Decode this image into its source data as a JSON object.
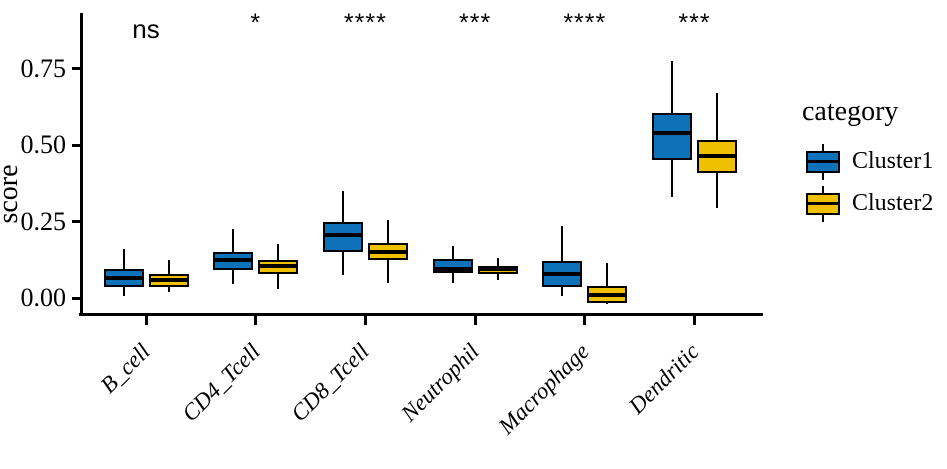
{
  "figure": {
    "ylabel": "score",
    "legend_title": "category"
  },
  "chart_data": {
    "type": "boxplot",
    "title": "",
    "xlabel": "",
    "ylabel": "score",
    "categories": [
      "B_cell",
      "CD4_Tcell",
      "CD8_Tcell",
      "Neutrophil",
      "Macrophage",
      "Dendritic"
    ],
    "significance_labels": [
      "ns",
      "*",
      "****",
      "***",
      "****",
      "***"
    ],
    "yticks": [
      "0.00",
      "0.25",
      "0.50",
      "0.75"
    ],
    "ytick_values": [
      0.0,
      0.25,
      0.5,
      0.75
    ],
    "ylim": [
      -0.05,
      0.95
    ],
    "grid": "off",
    "legend_position": "right",
    "legend": {
      "title": "category",
      "entries": [
        {
          "name": "Cluster1",
          "color": "#0E72B8"
        },
        {
          "name": "Cluster2",
          "color": "#EFC000"
        }
      ]
    },
    "series": [
      {
        "name": "Cluster1",
        "color": "#0E72B8",
        "boxes": [
          {
            "category": "B_cell",
            "min": 0.005,
            "q1": 0.035,
            "median": 0.065,
            "q3": 0.095,
            "max": 0.16
          },
          {
            "category": "CD4_Tcell",
            "min": 0.045,
            "q1": 0.09,
            "median": 0.125,
            "q3": 0.15,
            "max": 0.225
          },
          {
            "category": "CD8_Tcell",
            "min": 0.075,
            "q1": 0.15,
            "median": 0.205,
            "q3": 0.25,
            "max": 0.35
          },
          {
            "category": "Neutrophil",
            "min": 0.05,
            "q1": 0.082,
            "median": 0.095,
            "q3": 0.128,
            "max": 0.17
          },
          {
            "category": "Macrophage",
            "min": 0.005,
            "q1": 0.035,
            "median": 0.08,
            "q3": 0.12,
            "max": 0.235
          },
          {
            "category": "Dendritic",
            "min": 0.33,
            "q1": 0.45,
            "median": 0.54,
            "q3": 0.605,
            "max": 0.775
          }
        ]
      },
      {
        "name": "Cluster2",
        "color": "#EFC000",
        "boxes": [
          {
            "category": "B_cell",
            "min": 0.02,
            "q1": 0.035,
            "median": 0.06,
            "q3": 0.08,
            "max": 0.125
          },
          {
            "category": "CD4_Tcell",
            "min": 0.03,
            "q1": 0.08,
            "median": 0.105,
            "q3": 0.125,
            "max": 0.175
          },
          {
            "category": "CD8_Tcell",
            "min": 0.05,
            "q1": 0.125,
            "median": 0.15,
            "q3": 0.18,
            "max": 0.255
          },
          {
            "category": "Neutrophil",
            "min": 0.06,
            "q1": 0.08,
            "median": 0.095,
            "q3": 0.105,
            "max": 0.13
          },
          {
            "category": "Macrophage",
            "min": -0.02,
            "q1": -0.018,
            "median": 0.01,
            "q3": 0.04,
            "max": 0.115
          },
          {
            "category": "Dendritic",
            "min": 0.295,
            "q1": 0.41,
            "median": 0.465,
            "q3": 0.515,
            "max": 0.67
          }
        ]
      }
    ]
  }
}
